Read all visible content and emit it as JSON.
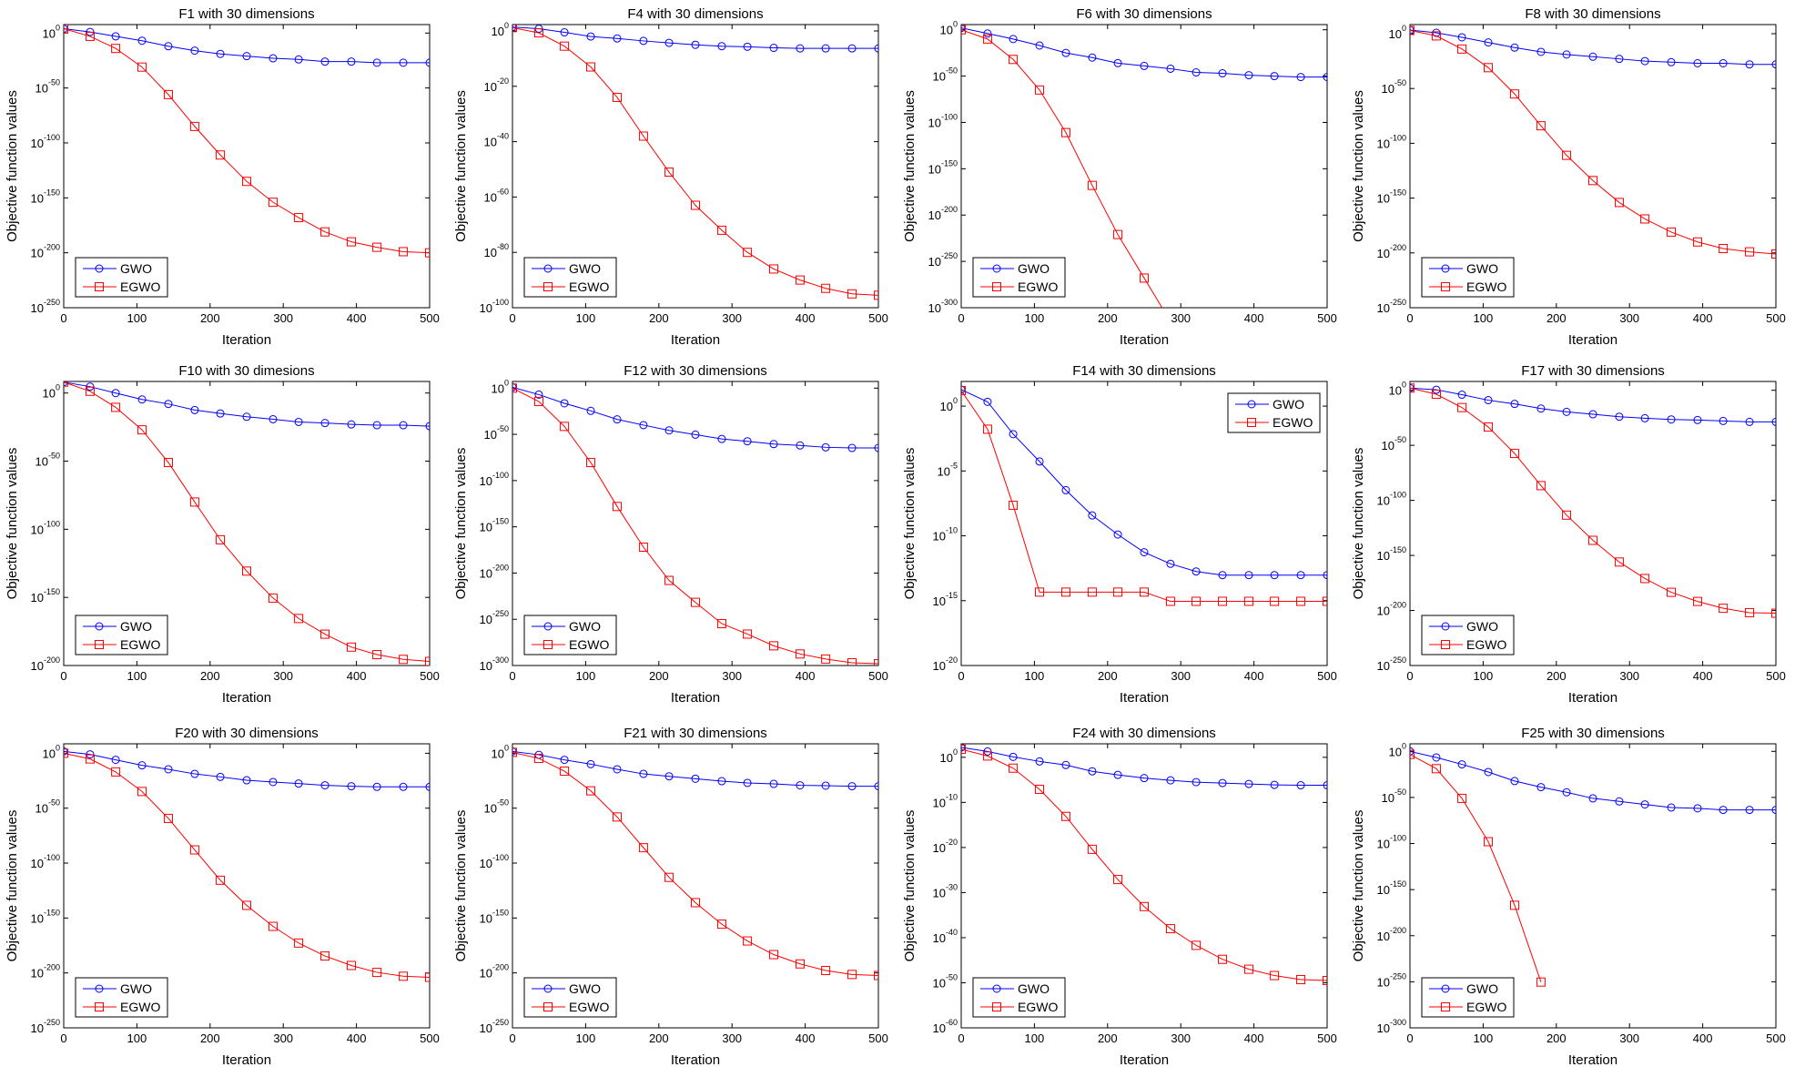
{
  "legend_labels": [
    "GWO",
    "EGWO"
  ],
  "series_colors": {
    "GWO": "#0000ff",
    "EGWO": "#ff0000"
  },
  "series_markers": {
    "GWO": "circle",
    "EGWO": "square"
  },
  "chart_data": [
    {
      "type": "line",
      "title": "F1 with 30 dimensions",
      "xlabel": "Iteration",
      "ylabel": "Objective function values",
      "yscale": "log",
      "xlim": [
        0,
        500
      ],
      "ylim_exponent": [
        -250,
        7.7
      ],
      "xticks": [
        0,
        100,
        200,
        300,
        400,
        500
      ],
      "ytick_exponents": [
        0,
        -50,
        -100,
        -150,
        -200,
        -250
      ],
      "legend": "bottom-left",
      "grid": false,
      "x": [
        0,
        36,
        71,
        107,
        143,
        179,
        214,
        250,
        286,
        321,
        357,
        393,
        428,
        464,
        500
      ],
      "series": [
        {
          "name": "GWO",
          "log10_values": [
            4,
            1,
            -3,
            -7,
            -12,
            -16,
            -19,
            -21,
            -23,
            -24,
            -26,
            -26,
            -27,
            -27,
            -27
          ]
        },
        {
          "name": "EGWO",
          "log10_values": [
            4,
            -3,
            -14,
            -31,
            -56,
            -85,
            -111,
            -135,
            -154,
            -168,
            -181,
            -190,
            -195,
            -199,
            -200
          ]
        }
      ]
    },
    {
      "type": "line",
      "title": "F4 with 30 dimensions",
      "xlabel": "Iteration",
      "ylabel": "Objective function values",
      "yscale": "log",
      "xlim": [
        0,
        500
      ],
      "ylim_exponent": [
        -100,
        2.3
      ],
      "xticks": [
        0,
        100,
        200,
        300,
        400,
        500
      ],
      "ytick_exponents": [
        0,
        -20,
        -40,
        -60,
        -80,
        -100
      ],
      "legend": "bottom-left",
      "grid": false,
      "x": [
        0,
        36,
        71,
        107,
        143,
        179,
        214,
        250,
        286,
        321,
        357,
        393,
        428,
        464,
        500
      ],
      "series": [
        {
          "name": "GWO",
          "log10_values": [
            1.4,
            0.8,
            -0.5,
            -2,
            -2.7,
            -3.6,
            -4.3,
            -5,
            -5.5,
            -5.7,
            -6.1,
            -6.3,
            -6.3,
            -6.3,
            -6.3
          ]
        },
        {
          "name": "EGWO",
          "log10_values": [
            1.2,
            -0.7,
            -5.5,
            -13,
            -24,
            -38,
            -51,
            -63,
            -72,
            -80,
            -86,
            -90,
            -93,
            -95,
            -95.5
          ]
        }
      ]
    },
    {
      "type": "line",
      "title": "F6 with 30 dimensions",
      "xlabel": "Iteration",
      "ylabel": "Objective function values",
      "yscale": "log",
      "xlim": [
        0,
        500
      ],
      "ylim_exponent": [
        -300,
        5.6
      ],
      "xticks": [
        0,
        100,
        200,
        300,
        400,
        500
      ],
      "ytick_exponents": [
        0,
        -50,
        -100,
        -150,
        -200,
        -250,
        -300
      ],
      "legend": "bottom-left",
      "grid": false,
      "x": [
        0,
        36,
        71,
        107,
        143,
        179,
        214,
        250,
        286,
        321,
        357,
        393,
        428,
        464,
        500
      ],
      "series": [
        {
          "name": "GWO",
          "log10_values": [
            2,
            -4,
            -10,
            -17,
            -25,
            -30,
            -36,
            -39,
            -42,
            -46,
            -47,
            -49,
            -50,
            -51,
            -51
          ]
        },
        {
          "name": "EGWO",
          "log10_values": [
            0,
            -10,
            -32,
            -65,
            -111,
            -168,
            -221,
            -268,
            -315
          ]
        }
      ]
    },
    {
      "type": "line",
      "title": "F8 with 30 dimensions",
      "xlabel": "Iteration",
      "ylabel": "Objective function values",
      "yscale": "log",
      "xlim": [
        0,
        500
      ],
      "ylim_exponent": [
        -250,
        8.3
      ],
      "xticks": [
        0,
        100,
        200,
        300,
        400,
        500
      ],
      "ytick_exponents": [
        0,
        -50,
        -100,
        -150,
        -200,
        -250
      ],
      "legend": "bottom-left",
      "grid": false,
      "x": [
        0,
        36,
        71,
        107,
        143,
        179,
        214,
        250,
        286,
        321,
        357,
        393,
        428,
        464,
        500
      ],
      "series": [
        {
          "name": "GWO",
          "log10_values": [
            3.3,
            0.8,
            -3.3,
            -8,
            -12.7,
            -16.6,
            -19,
            -21,
            -23,
            -25,
            -26,
            -27,
            -27,
            -28,
            -28
          ]
        },
        {
          "name": "EGWO",
          "log10_values": [
            3,
            -2,
            -14,
            -31,
            -55,
            -84,
            -111,
            -134,
            -154,
            -169,
            -181,
            -190,
            -196,
            -199,
            -201
          ]
        }
      ]
    },
    {
      "type": "line",
      "title": "F10 with 30 dimesions",
      "xlabel": "Iteration",
      "ylabel": "Objective function values",
      "yscale": "log",
      "xlim": [
        0,
        500
      ],
      "ylim_exponent": [
        -200,
        8.5
      ],
      "xticks": [
        0,
        100,
        200,
        300,
        400,
        500
      ],
      "ytick_exponents": [
        0,
        -50,
        -100,
        -150,
        -200
      ],
      "legend": "bottom-left",
      "grid": false,
      "x": [
        0,
        36,
        71,
        107,
        143,
        179,
        214,
        250,
        286,
        321,
        357,
        393,
        428,
        464,
        500
      ],
      "series": [
        {
          "name": "GWO",
          "log10_values": [
            8,
            4.7,
            0,
            -4.7,
            -8,
            -12.5,
            -15,
            -17.4,
            -19.2,
            -21.2,
            -22,
            -23,
            -23.6,
            -23.6,
            -24.3
          ]
        },
        {
          "name": "EGWO",
          "log10_values": [
            8,
            1.3,
            -10.5,
            -27,
            -51,
            -80,
            -107.7,
            -130.7,
            -150.5,
            -165.5,
            -177,
            -186.5,
            -192,
            -195.5,
            -197
          ]
        }
      ]
    },
    {
      "type": "line",
      "title": "F12 with 30 dimensions",
      "xlabel": "Iteration",
      "ylabel": "Objective function values",
      "yscale": "log",
      "xlim": [
        0,
        500
      ],
      "ylim_exponent": [
        -300,
        7.2
      ],
      "xticks": [
        0,
        100,
        200,
        300,
        400,
        500
      ],
      "ytick_exponents": [
        0,
        -50,
        -100,
        -150,
        -200,
        -250,
        -300
      ],
      "legend": "bottom-left",
      "grid": false,
      "x": [
        0,
        36,
        71,
        107,
        143,
        179,
        214,
        250,
        286,
        321,
        357,
        393,
        428,
        464,
        500
      ],
      "series": [
        {
          "name": "GWO",
          "log10_values": [
            1,
            -7,
            -16.4,
            -24.6,
            -33.8,
            -40,
            -45.7,
            -50.3,
            -55,
            -57.5,
            -60.5,
            -62,
            -64,
            -64.7,
            -64.7
          ]
        },
        {
          "name": "EGWO",
          "log10_values": [
            0,
            -14.5,
            -41.4,
            -80.5,
            -128,
            -172,
            -208,
            -231.7,
            -254.7,
            -266,
            -278.7,
            -287.5,
            -293,
            -297,
            -298
          ]
        }
      ]
    },
    {
      "type": "line",
      "title": "F14 with 30 dimensions",
      "xlabel": "Iteration",
      "ylabel": "Objective function values",
      "yscale": "log",
      "xlim": [
        0,
        500
      ],
      "ylim_exponent": [
        -20,
        1.9
      ],
      "xticks": [
        0,
        100,
        200,
        300,
        400,
        500
      ],
      "ytick_exponents": [
        0,
        -5,
        -10,
        -15,
        -20
      ],
      "legend": "top-right",
      "grid": false,
      "x": [
        0,
        36,
        71,
        107,
        143,
        179,
        214,
        250,
        286,
        321,
        357,
        393,
        428,
        464,
        500
      ],
      "series": [
        {
          "name": "GWO",
          "log10_values": [
            1.27,
            0.33,
            -2.16,
            -4.27,
            -6.48,
            -8.43,
            -9.9,
            -11.27,
            -12.16,
            -12.75,
            -13.03,
            -13.03,
            -13.03,
            -13.03,
            -13.03
          ]
        },
        {
          "name": "EGWO",
          "log10_values": [
            1.2,
            -1.78,
            -7.65,
            -14.34,
            -14.34,
            -14.34,
            -14.34,
            -14.34,
            -15.05,
            -15.05,
            -15.05,
            -15.05,
            -15.05,
            -15.05,
            -15.05
          ]
        }
      ]
    },
    {
      "type": "line",
      "title": "F17 with 30 dimensions",
      "xlabel": "Iteration",
      "ylabel": "Objective function values",
      "yscale": "log",
      "xlim": [
        0,
        500
      ],
      "ylim_exponent": [
        -250,
        8
      ],
      "xticks": [
        0,
        100,
        200,
        300,
        400,
        500
      ],
      "ytick_exponents": [
        0,
        -50,
        -100,
        -150,
        -200,
        -250
      ],
      "legend": "bottom-left",
      "grid": false,
      "x": [
        0,
        36,
        71,
        107,
        143,
        179,
        214,
        250,
        286,
        321,
        357,
        393,
        428,
        464,
        500
      ],
      "series": [
        {
          "name": "GWO",
          "log10_values": [
            2,
            0.5,
            -4,
            -9,
            -12.4,
            -16.6,
            -19.6,
            -21.8,
            -24,
            -25.4,
            -26.5,
            -27,
            -27.9,
            -28.7,
            -28.7
          ]
        },
        {
          "name": "EGWO",
          "log10_values": [
            2,
            -3.6,
            -15.7,
            -33.4,
            -57.4,
            -86.6,
            -113.4,
            -136.3,
            -156,
            -171,
            -183.5,
            -191.8,
            -198,
            -202,
            -202.5
          ]
        }
      ]
    },
    {
      "type": "line",
      "title": "F20 with 30 dimensions",
      "xlabel": "Iteration",
      "ylabel": "Objective function values",
      "yscale": "log",
      "xlim": [
        0,
        500
      ],
      "ylim_exponent": [
        -250,
        8.6
      ],
      "xticks": [
        0,
        100,
        200,
        300,
        400,
        500
      ],
      "ytick_exponents": [
        0,
        -50,
        -100,
        -150,
        -200,
        -250
      ],
      "legend": "bottom-left",
      "grid": false,
      "x": [
        0,
        36,
        71,
        107,
        143,
        179,
        214,
        250,
        286,
        321,
        357,
        393,
        428,
        464,
        500
      ],
      "series": [
        {
          "name": "GWO",
          "log10_values": [
            1.7,
            -1,
            -6,
            -11,
            -14.6,
            -18.8,
            -21.5,
            -24.6,
            -26.2,
            -27.6,
            -29.2,
            -30,
            -30.6,
            -30.6,
            -30.6
          ]
        },
        {
          "name": "EGWO",
          "log10_values": [
            0,
            -5.2,
            -17,
            -34.8,
            -59.3,
            -88,
            -115.6,
            -138.5,
            -157.6,
            -172.8,
            -184.6,
            -193.2,
            -199.5,
            -203,
            -204
          ]
        }
      ]
    },
    {
      "type": "line",
      "title": "F21 with 30 dimensions",
      "xlabel": "Iteration",
      "ylabel": "Objective function values",
      "yscale": "log",
      "xlim": [
        0,
        500
      ],
      "ylim_exponent": [
        -250,
        8.6
      ],
      "xticks": [
        0,
        100,
        200,
        300,
        400,
        500
      ],
      "ytick_exponents": [
        0,
        -50,
        -100,
        -150,
        -200,
        -250
      ],
      "legend": "bottom-left",
      "grid": false,
      "x": [
        0,
        36,
        71,
        107,
        143,
        179,
        214,
        250,
        286,
        321,
        357,
        393,
        428,
        464,
        500
      ],
      "series": [
        {
          "name": "GWO",
          "log10_values": [
            1.7,
            -1.4,
            -6,
            -9.9,
            -14.6,
            -18.8,
            -21,
            -23.2,
            -25.4,
            -27,
            -27.9,
            -29.2,
            -29.5,
            -30,
            -30
          ]
        },
        {
          "name": "EGWO",
          "log10_values": [
            0.8,
            -4.7,
            -16.3,
            -34.2,
            -58,
            -86,
            -113,
            -136,
            -155.6,
            -170.9,
            -183.3,
            -191.8,
            -197.8,
            -201.4,
            -202.3
          ]
        }
      ]
    },
    {
      "type": "line",
      "title": "F24 with 30 dimensions",
      "xlabel": "Iteration",
      "ylabel": "Objective function values",
      "yscale": "log",
      "xlim": [
        0,
        500
      ],
      "ylim_exponent": [
        -60,
        3
      ],
      "xticks": [
        0,
        100,
        200,
        300,
        400,
        500
      ],
      "ytick_exponents": [
        0,
        -10,
        -20,
        -30,
        -40,
        -50,
        -60
      ],
      "legend": "bottom-left",
      "grid": false,
      "x": [
        0,
        36,
        71,
        107,
        143,
        179,
        214,
        250,
        286,
        321,
        357,
        393,
        428,
        464,
        500
      ],
      "series": [
        {
          "name": "GWO",
          "log10_values": [
            2.2,
            1.3,
            0.1,
            -0.9,
            -1.7,
            -3.1,
            -3.9,
            -4.6,
            -5.1,
            -5.5,
            -5.7,
            -5.9,
            -6.1,
            -6.2,
            -6.2
          ]
        },
        {
          "name": "EGWO",
          "log10_values": [
            1.8,
            0.3,
            -2.4,
            -7.1,
            -13.1,
            -20.4,
            -27.1,
            -33.1,
            -38,
            -41.7,
            -44.8,
            -47,
            -48.4,
            -49.3,
            -49.5
          ]
        }
      ]
    },
    {
      "type": "line",
      "title": "F25 with 30 dimensions",
      "xlabel": "Iteration",
      "ylabel": "Objective function values",
      "yscale": "log",
      "xlim": [
        0,
        500
      ],
      "ylim_exponent": [
        -300,
        8.2
      ],
      "xticks": [
        0,
        100,
        200,
        300,
        400,
        500
      ],
      "ytick_exponents": [
        0,
        -50,
        -100,
        -150,
        -200,
        -250,
        -300
      ],
      "legend": "bottom-left",
      "grid": false,
      "x": [
        0,
        36,
        71,
        107,
        143,
        179,
        214,
        250,
        286,
        321,
        357,
        393,
        428,
        464,
        500
      ],
      "series": [
        {
          "name": "GWO",
          "log10_values": [
            0,
            -6.6,
            -14.1,
            -22.4,
            -32.2,
            -38.8,
            -44.4,
            -51,
            -54.3,
            -57.6,
            -60.9,
            -61.8,
            -63.5,
            -63.5,
            -63.5
          ]
        },
        {
          "name": "EGWO",
          "log10_values": [
            -3.3,
            -18.8,
            -51,
            -98,
            -167,
            -250.3
          ]
        }
      ]
    }
  ]
}
